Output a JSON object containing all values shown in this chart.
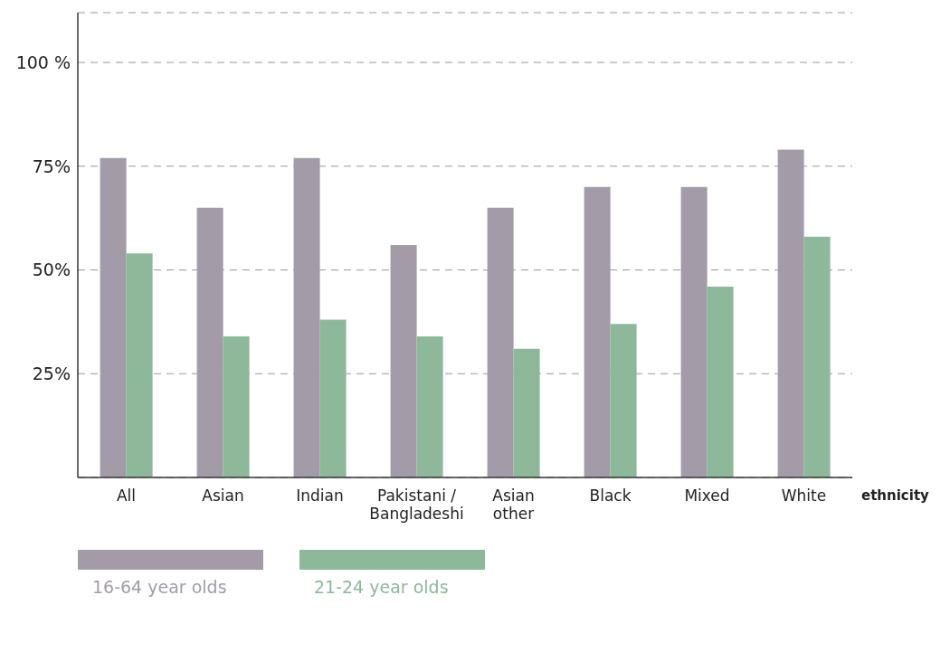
{
  "chart_data": {
    "type": "bar",
    "xlabel": "ethnicity",
    "categories": [
      "All",
      "Asian",
      "Indian",
      "Pakistani /\nBangladeshi",
      "Asian\nother",
      "Black",
      "Mixed",
      "White"
    ],
    "series": [
      {
        "name": "16-64 year olds",
        "color": "#a39ba8",
        "values": [
          77,
          65,
          77,
          56,
          65,
          70,
          70,
          79
        ]
      },
      {
        "name": "21-24 year olds",
        "color": "#8db89a",
        "values": [
          54,
          34,
          38,
          34,
          31,
          37,
          46,
          58
        ]
      }
    ],
    "ylim": [
      0,
      112
    ],
    "yticks": [
      {
        "value": 25,
        "label": "25%"
      },
      {
        "value": 50,
        "label": "50%"
      },
      {
        "value": 75,
        "label": "75%"
      },
      {
        "value": 100,
        "label": "100 %"
      }
    ],
    "grid": "y",
    "legend": "bottom"
  }
}
